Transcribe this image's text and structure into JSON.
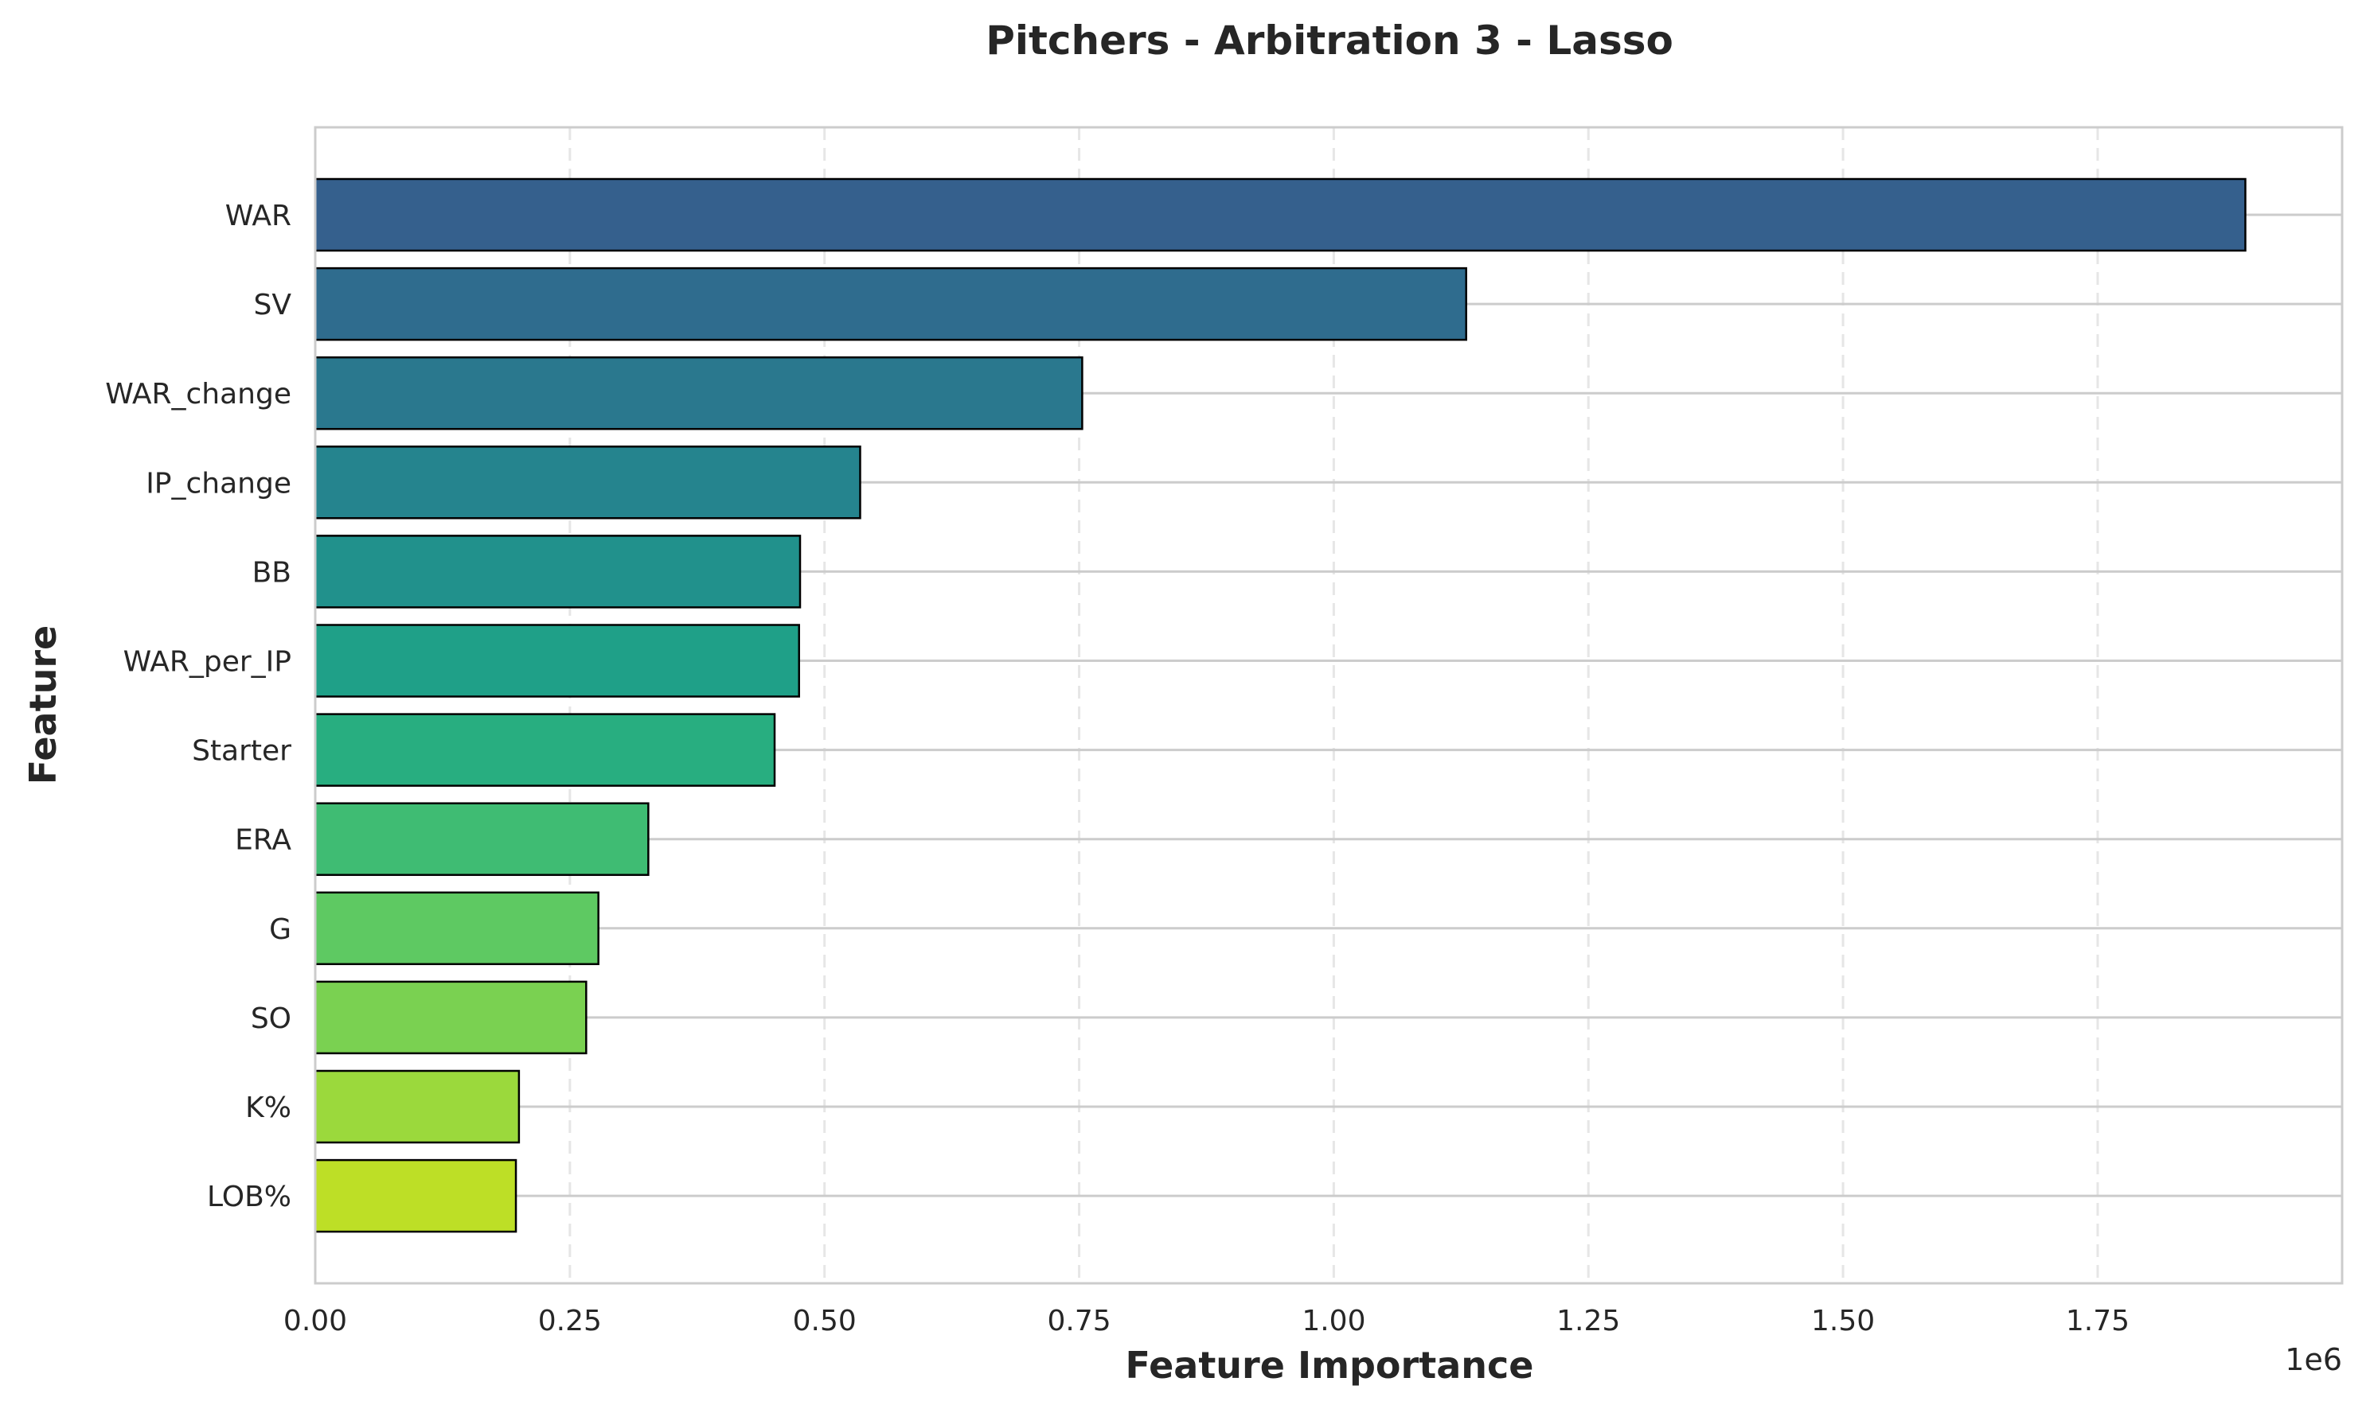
{
  "chart_data": {
    "type": "bar",
    "orientation": "horizontal",
    "title": "Pitchers - Arbitration 3 - Lasso",
    "xlabel": "Feature Importance",
    "ylabel": "Feature",
    "x_scale_label": "1e6",
    "xlim": [
      0,
      1.99
    ],
    "x_ticks": [
      "0.00",
      "0.25",
      "0.50",
      "0.75",
      "1.00",
      "1.25",
      "1.50",
      "1.75"
    ],
    "x_tick_values": [
      0,
      0.25,
      0.5,
      0.75,
      1.0,
      1.25,
      1.5,
      1.75
    ],
    "grid": true,
    "categories": [
      "WAR",
      "SV",
      "WAR_change",
      "IP_change",
      "BB",
      "WAR_per_IP",
      "Starter",
      "ERA",
      "G",
      "SO",
      "K%",
      "LOB%"
    ],
    "values": [
      1.895,
      1.13,
      0.753,
      0.535,
      0.476,
      0.475,
      0.451,
      0.327,
      0.278,
      0.266,
      0.2,
      0.197
    ],
    "colors": [
      "#35608d",
      "#2f6c8e",
      "#2a788e",
      "#25848e",
      "#21918c",
      "#1fa088",
      "#28ae80",
      "#3fbc73",
      "#5ec962",
      "#7ad151",
      "#9bd93c",
      "#bddf26"
    ]
  }
}
